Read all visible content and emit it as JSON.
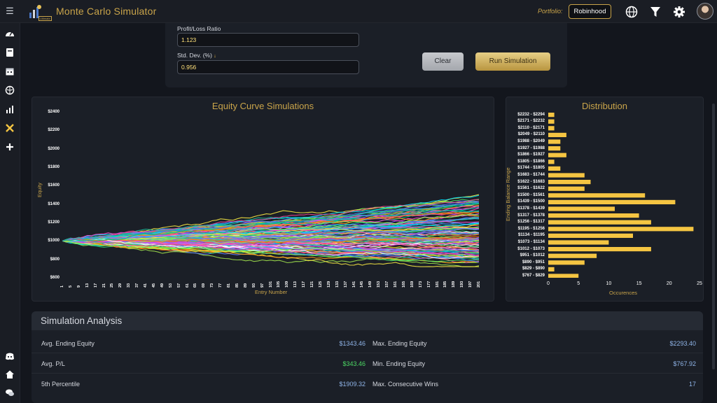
{
  "app": {
    "title": "Monte Carlo Simulator",
    "badge": "Ultimate"
  },
  "header": {
    "portfolio_label": "Portfolio:",
    "portfolio_value": "Robinhood"
  },
  "form": {
    "profit_loss_label": "Profit/Loss Ratio",
    "profit_loss_value": "1.123",
    "std_dev_label": "Std. Dev. (%)",
    "std_dev_value": "0.956",
    "clear_label": "Clear",
    "run_label": "Run Simulation"
  },
  "equity_chart_title": "Equity Curve Simulations",
  "distribution_chart_title": "Distribution",
  "chart_data": [
    {
      "type": "line",
      "title": "Equity Curve Simulations",
      "xlabel": "Entry Number",
      "ylabel": "Equity",
      "ylim": [
        600,
        2400
      ],
      "yticks": [
        "$600",
        "$800",
        "$1000",
        "$1200",
        "$1400",
        "$1600",
        "$1800",
        "$2000",
        "$2200",
        "$2400"
      ],
      "xticks": [
        "1",
        "5",
        "9",
        "13",
        "17",
        "21",
        "25",
        "29",
        "33",
        "37",
        "41",
        "45",
        "49",
        "53",
        "57",
        "61",
        "65",
        "69",
        "73",
        "77",
        "81",
        "85",
        "89",
        "93",
        "97",
        "101",
        "105",
        "109",
        "113",
        "117",
        "121",
        "125",
        "129",
        "133",
        "137",
        "141",
        "145",
        "149",
        "153",
        "157",
        "161",
        "165",
        "169",
        "173",
        "177",
        "181",
        "185",
        "189",
        "193",
        "197",
        "201"
      ],
      "start_value": 1000,
      "entries": 201,
      "series_count": 120,
      "series_note": "many simulated equity paths starting at $1000"
    },
    {
      "type": "bar",
      "orientation": "horizontal",
      "title": "Distribution",
      "xlabel": "Occurences",
      "ylabel": "Ending Balance Range",
      "xlim": [
        0,
        25
      ],
      "xticks": [
        "0",
        "5",
        "10",
        "15",
        "20",
        "25"
      ],
      "categories": [
        "$2232 - $2294",
        "$2171 - $2232",
        "$2110 - $2171",
        "$2049 - $2110",
        "$1988 - $2049",
        "$1927 - $1988",
        "$1866 - $1927",
        "$1805 - $1866",
        "$1744 - $1805",
        "$1683 - $1744",
        "$1622 - $1683",
        "$1561 - $1622",
        "$1500 - $1561",
        "$1439 - $1500",
        "$1378 - $1439",
        "$1317 - $1378",
        "$1256 - $1317",
        "$1195 - $1256",
        "$1134 - $1195",
        "$1073 - $1134",
        "$1012 - $1073",
        "$951 - $1012",
        "$890 - $951",
        "$829 - $890",
        "$767 - $829"
      ],
      "values": [
        1,
        1,
        1,
        3,
        2,
        2,
        3,
        1,
        2,
        6,
        7,
        6,
        16,
        21,
        11,
        15,
        17,
        24,
        14,
        10,
        17,
        8,
        6,
        1,
        5
      ],
      "color": "#f5c542"
    }
  ],
  "analysis": {
    "title": "Simulation Analysis",
    "rows": [
      {
        "l1": "Avg. Ending Equity",
        "v1": "$1343.46",
        "l2": "Max. Ending Equity",
        "v2": "$2293.40"
      },
      {
        "l1": "Avg. P/L",
        "v1": "$343.46",
        "l2": "Min. Ending Equity",
        "v2": "$767.92"
      },
      {
        "l1": "5th Percentile",
        "v1": "$1909.32",
        "l2": "Max. Consecutive Wins",
        "v2": "17"
      }
    ]
  },
  "colors": {
    "accent": "#c9a44a",
    "bar": "#f5c542",
    "value": "#8fb4e8",
    "positive": "#4cd964"
  },
  "icons": [
    "menu-icon",
    "dashboard-icon",
    "journal-icon",
    "calendar-icon",
    "brain-icon",
    "chart-icon",
    "tools-icon",
    "plus-icon",
    "discord-icon",
    "home-icon",
    "chat-icon",
    "globe-icon",
    "filter-icon",
    "gear-icon"
  ]
}
